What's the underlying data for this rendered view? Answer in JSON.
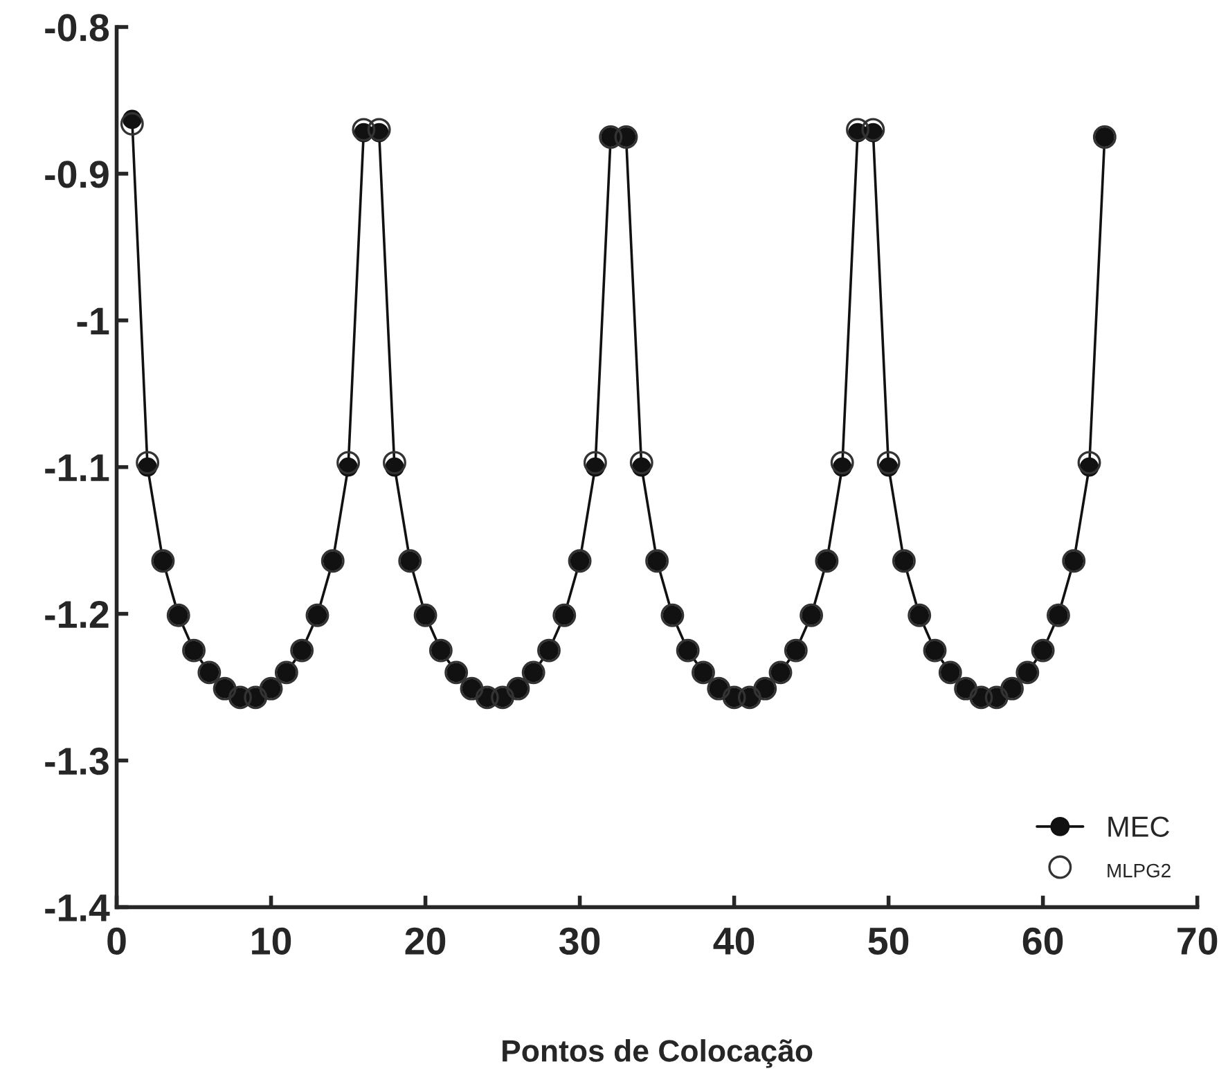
{
  "chart_data": {
    "type": "line",
    "xlabel": "Pontos de Colocação",
    "x": [
      1,
      2,
      3,
      4,
      5,
      6,
      7,
      8,
      9,
      10,
      11,
      12,
      13,
      14,
      15,
      16,
      17,
      18,
      19,
      20,
      21,
      22,
      23,
      24,
      25,
      26,
      27,
      28,
      29,
      30,
      31,
      32,
      33,
      34,
      35,
      36,
      37,
      38,
      39,
      40,
      41,
      42,
      43,
      44,
      45,
      46,
      47,
      48,
      49,
      50,
      51,
      52,
      53,
      54,
      55,
      56,
      57,
      58,
      59,
      60,
      61,
      62,
      63,
      64
    ],
    "series": [
      {
        "name": "MEC",
        "color": "#111111",
        "marker": "circle",
        "line_style": "solid",
        "values": [
          -0.863,
          -1.1,
          -1.164,
          -1.201,
          -1.225,
          -1.24,
          -1.251,
          -1.257,
          -1.257,
          -1.251,
          -1.24,
          -1.225,
          -1.201,
          -1.164,
          -1.1,
          -0.872,
          -0.872,
          -1.1,
          -1.164,
          -1.201,
          -1.225,
          -1.24,
          -1.251,
          -1.257,
          -1.257,
          -1.251,
          -1.24,
          -1.225,
          -1.201,
          -1.164,
          -1.1,
          -0.875,
          -0.875,
          -1.1,
          -1.164,
          -1.201,
          -1.225,
          -1.24,
          -1.251,
          -1.257,
          -1.257,
          -1.251,
          -1.24,
          -1.225,
          -1.201,
          -1.164,
          -1.1,
          -0.872,
          -0.872,
          -1.1,
          -1.164,
          -1.201,
          -1.225,
          -1.24,
          -1.251,
          -1.257,
          -1.257,
          -1.251,
          -1.24,
          -1.225,
          -1.201,
          -1.164,
          -1.1,
          -0.875
        ]
      },
      {
        "name": "MLPG2",
        "color": "#333333",
        "type": "scatter",
        "marker": "circle",
        "values": [
          -0.866,
          -1.097,
          -1.164,
          -1.201,
          -1.225,
          -1.24,
          -1.251,
          -1.257,
          -1.257,
          -1.251,
          -1.24,
          -1.225,
          -1.201,
          -1.164,
          -1.097,
          -0.87,
          -0.87,
          -1.097,
          -1.164,
          -1.201,
          -1.225,
          -1.24,
          -1.251,
          -1.257,
          -1.257,
          -1.251,
          -1.24,
          -1.225,
          -1.201,
          -1.164,
          -1.097,
          -0.875,
          -0.875,
          -1.097,
          -1.164,
          -1.201,
          -1.225,
          -1.24,
          -1.251,
          -1.257,
          -1.257,
          -1.251,
          -1.24,
          -1.225,
          -1.201,
          -1.164,
          -1.097,
          -0.87,
          -0.87,
          -1.097,
          -1.164,
          -1.201,
          -1.225,
          -1.24,
          -1.251,
          -1.257,
          -1.257,
          -1.251,
          -1.24,
          -1.225,
          -1.201,
          -1.164,
          -1.097,
          -0.875
        ]
      }
    ],
    "xlim": [
      0,
      70
    ],
    "xticks": [
      0,
      10,
      20,
      30,
      40,
      50,
      60,
      70
    ],
    "ylim": [
      -1.4,
      -0.8
    ],
    "yticks": [
      {
        "value": -1.4,
        "label": "-1.4"
      },
      {
        "value": -1.3,
        "label": "-1.3"
      },
      {
        "value": -1.2,
        "label": "-1.2"
      },
      {
        "value": -1.1,
        "label": "-1.1"
      },
      {
        "value": -1,
        "label": "-1"
      },
      {
        "value": -0.9,
        "label": "-0.9"
      },
      {
        "value": -0.8,
        "label": "-0.8"
      }
    ],
    "grid": false,
    "legend": "bottom right"
  }
}
